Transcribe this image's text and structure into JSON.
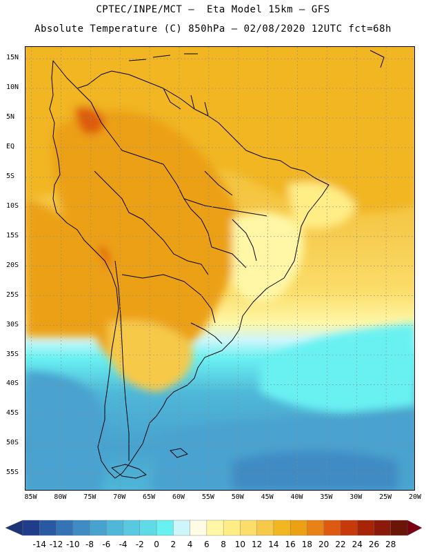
{
  "header": {
    "line1": "CPTEC/INPE/MCT –  Eta Model 15km – GFS",
    "line2": "Absolute Temperature (C) 850hPa – 02/08/2020 12UTC fct=68h"
  },
  "map": {
    "region": "South America",
    "variable": "temperature-850hPa",
    "lat_labels": [
      {
        "text": "15N",
        "lat": 15
      },
      {
        "text": "10N",
        "lat": 10
      },
      {
        "text": "5N",
        "lat": 5
      },
      {
        "text": "EQ",
        "lat": 0
      },
      {
        "text": "5S",
        "lat": -5
      },
      {
        "text": "10S",
        "lat": -10
      },
      {
        "text": "15S",
        "lat": -15
      },
      {
        "text": "20S",
        "lat": -20
      },
      {
        "text": "25S",
        "lat": -25
      },
      {
        "text": "30S",
        "lat": -30
      },
      {
        "text": "35S",
        "lat": -35
      },
      {
        "text": "40S",
        "lat": -40
      },
      {
        "text": "45S",
        "lat": -45
      },
      {
        "text": "50S",
        "lat": -50
      },
      {
        "text": "55S",
        "lat": -55
      }
    ],
    "lon_labels": [
      {
        "text": "85W",
        "lon": -85
      },
      {
        "text": "80W",
        "lon": -80
      },
      {
        "text": "75W",
        "lon": -75
      },
      {
        "text": "70W",
        "lon": -70
      },
      {
        "text": "65W",
        "lon": -65
      },
      {
        "text": "60W",
        "lon": -60
      },
      {
        "text": "55W",
        "lon": -55
      },
      {
        "text": "50W",
        "lon": -50
      },
      {
        "text": "45W",
        "lon": -45
      },
      {
        "text": "40W",
        "lon": -40
      },
      {
        "text": "35W",
        "lon": -35
      },
      {
        "text": "30W",
        "lon": -30
      },
      {
        "text": "25W",
        "lon": -25
      },
      {
        "text": "20W",
        "lon": -20
      }
    ],
    "lat_range": [
      -58,
      17
    ],
    "lon_range": [
      -86,
      -20
    ]
  },
  "colorbar": {
    "labels": [
      "-14",
      "-12",
      "-10",
      "-8",
      "-6",
      "-4",
      "-2",
      "0",
      "2",
      "4",
      "6",
      "8",
      "10",
      "12",
      "14",
      "16",
      "18",
      "20",
      "22",
      "24",
      "26",
      "28"
    ],
    "colors": [
      "#1f3d8a",
      "#2a59a3",
      "#3473b5",
      "#3f8bc4",
      "#48a2cf",
      "#4fb7d8",
      "#58c9e0",
      "#5fdbe8",
      "#69f1f2",
      "#cdf6fa",
      "#fffbe5",
      "#fff7a6",
      "#ffed86",
      "#fbdd6a",
      "#f6c94a",
      "#f1b620",
      "#eca014",
      "#e88116",
      "#de5a10",
      "#c6390a",
      "#a82406",
      "#8c1a0a",
      "#6b1506"
    ],
    "left_arrow_color": "#1c3478",
    "right_arrow_color": "#7a0011"
  },
  "legend_colors": {
    "cold_ocean": "#48a2cf",
    "cool_ocean": "#69f1f2",
    "mild": "#fff7a6",
    "warm": "#f6c94a",
    "hot": "#eca014",
    "very_hot": "#de5a10"
  }
}
